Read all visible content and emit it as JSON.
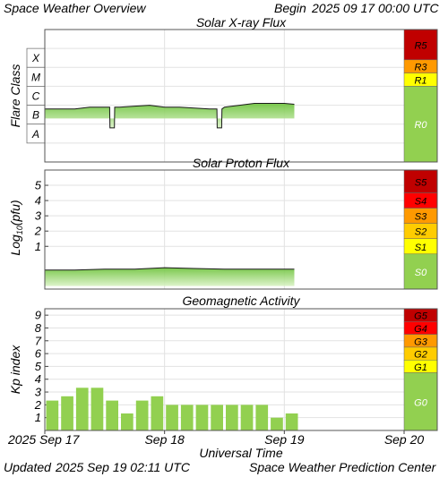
{
  "header": {
    "title": "Space Weather Overview",
    "begin_label": "Begin",
    "begin_time": "2025 09 17 00:00 UTC"
  },
  "footer": {
    "updated_label": "Updated",
    "updated_time": "2025 Sep 19 02:11 UTC",
    "credit": "Space Weather Prediction Center"
  },
  "colors": {
    "plot_bg": "#ffffff",
    "border": "#555555",
    "grid": "#e2e2e2",
    "fill_light": "#d9f2c4",
    "fill_dark": "#6cc23a",
    "bar": "#92d050",
    "scale_red_dark": "#c00000",
    "scale_red": "#ff0000",
    "scale_orange": "#ff9900",
    "scale_yellow": "#ffff00",
    "scale_green": "#92d050"
  },
  "chart_data": [
    {
      "type": "area",
      "title": "Solar X-ray Flux",
      "ylabel": "Flare Class",
      "class_labels": [
        "X",
        "M",
        "C",
        "B",
        "A"
      ],
      "ylim": [
        -9,
        -2
      ],
      "x": [
        "2025-09-17 00:00",
        "2025-09-17 03:00",
        "2025-09-17 06:00",
        "2025-09-17 09:00",
        "2025-09-17 12:00",
        "2025-09-17 15:00",
        "2025-09-17 18:00",
        "2025-09-17 21:00",
        "2025-09-18 00:00",
        "2025-09-18 03:00",
        "2025-09-18 06:00",
        "2025-09-18 09:00",
        "2025-09-18 12:00",
        "2025-09-18 15:00",
        "2025-09-18 18:00",
        "2025-09-18 21:00",
        "2025-09-19 00:00",
        "2025-09-19 02:00"
      ],
      "values": [
        -6.2,
        -6.2,
        -6.2,
        -6.1,
        -6.1,
        -6.1,
        -6.05,
        -6.0,
        -6.1,
        -6.1,
        -6.15,
        -6.2,
        -6.1,
        -6.0,
        -5.9,
        -5.9,
        -5.9,
        -5.95
      ],
      "dropouts": [
        {
          "start": "2025-09-17 13:00",
          "end": "2025-09-17 14:00",
          "value": -7.2
        },
        {
          "start": "2025-09-18 10:30",
          "end": "2025-09-18 11:30",
          "value": -7.2
        }
      ],
      "scale": [
        {
          "label": "R5",
          "color": "#c00000"
        },
        {
          "label": "R3",
          "color": "#ff9900"
        },
        {
          "label": "R1",
          "color": "#ffff00"
        },
        {
          "label": "R0",
          "color": "#92d050"
        }
      ]
    },
    {
      "type": "area",
      "title": "Solar Proton Flux",
      "ylabel": "Log10(pfu)",
      "ylabel_main": "Log",
      "ylabel_sub": "10",
      "ylabel_rest": "(pfu)",
      "yticks": [
        1,
        2,
        3,
        4,
        5
      ],
      "ylim": [
        -1.8,
        6
      ],
      "x": [
        "2025-09-17 00:00",
        "2025-09-17 06:00",
        "2025-09-17 12:00",
        "2025-09-17 18:00",
        "2025-09-18 00:00",
        "2025-09-18 06:00",
        "2025-09-18 12:00",
        "2025-09-18 18:00",
        "2025-09-19 00:00",
        "2025-09-19 02:00"
      ],
      "values": [
        -0.55,
        -0.55,
        -0.5,
        -0.5,
        -0.4,
        -0.45,
        -0.5,
        -0.5,
        -0.5,
        -0.5
      ],
      "scale": [
        {
          "label": "S5",
          "color": "#c00000"
        },
        {
          "label": "S4",
          "color": "#ff0000"
        },
        {
          "label": "S3",
          "color": "#ff9900"
        },
        {
          "label": "S2",
          "color": "#ffcc00"
        },
        {
          "label": "S1",
          "color": "#ffff00"
        },
        {
          "label": "S0",
          "color": "#92d050"
        }
      ]
    },
    {
      "type": "bar",
      "title": "Geomagnetic Activity",
      "ylabel": "Kp index",
      "yticks": [
        1,
        2,
        3,
        4,
        5,
        6,
        7,
        8,
        9
      ],
      "ylim": [
        0,
        9.5
      ],
      "x": [
        "2025-09-17 00:00",
        "2025-09-17 03:00",
        "2025-09-17 06:00",
        "2025-09-17 09:00",
        "2025-09-17 12:00",
        "2025-09-17 15:00",
        "2025-09-17 18:00",
        "2025-09-17 21:00",
        "2025-09-18 00:00",
        "2025-09-18 03:00",
        "2025-09-18 06:00",
        "2025-09-18 09:00",
        "2025-09-18 12:00",
        "2025-09-18 15:00",
        "2025-09-18 18:00",
        "2025-09-18 21:00",
        "2025-09-19 00:00"
      ],
      "values": [
        2.33,
        2.67,
        3.33,
        3.33,
        2.33,
        1.33,
        2.33,
        2.67,
        2.0,
        2.0,
        2.0,
        2.0,
        2.0,
        2.0,
        2.0,
        1.0,
        1.33
      ],
      "scale": [
        {
          "label": "G5",
          "color": "#c00000"
        },
        {
          "label": "G4",
          "color": "#ff0000"
        },
        {
          "label": "G3",
          "color": "#ff9900"
        },
        {
          "label": "G2",
          "color": "#ffcc00"
        },
        {
          "label": "G1",
          "color": "#ffff00"
        },
        {
          "label": "G0",
          "color": "#92d050"
        }
      ]
    }
  ],
  "xaxis": {
    "label": "Universal Time",
    "ticks": [
      "2025 Sep 17",
      "Sep 18",
      "Sep 19",
      "Sep 20"
    ],
    "start": "2025-09-17 00:00",
    "end": "2025-09-20 00:00"
  }
}
